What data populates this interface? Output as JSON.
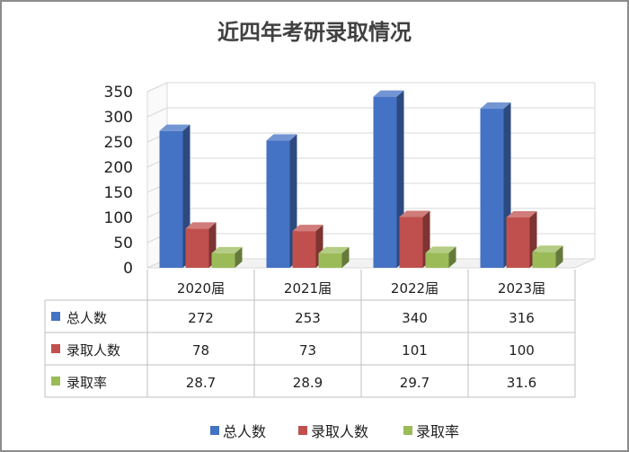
{
  "chart_data": {
    "type": "bar",
    "title": "近四年考研录取情况",
    "categories": [
      "2020届",
      "2021届",
      "2022届",
      "2023届"
    ],
    "series": [
      {
        "name": "总人数",
        "values": [
          272,
          253,
          340,
          316
        ],
        "value_labels": [
          "272",
          "253",
          "340",
          "316"
        ],
        "color": "#4472c4"
      },
      {
        "name": "录取人数",
        "values": [
          78,
          73,
          101,
          100
        ],
        "value_labels": [
          "78",
          "73",
          "101",
          "100"
        ],
        "color": "#c0504d"
      },
      {
        "name": "录取率",
        "values": [
          28.7,
          28.9,
          29.7,
          31.6
        ],
        "value_labels": [
          "28.7",
          "28.9",
          "29.7",
          "31.6"
        ],
        "color": "#9bbb59"
      }
    ],
    "ylim": [
      0,
      350
    ],
    "yticks": [
      "0",
      "50",
      "100",
      "150",
      "200",
      "250",
      "300",
      "350"
    ],
    "grid": true,
    "legend": "bottom",
    "data_table": true,
    "style": "3d-column"
  }
}
